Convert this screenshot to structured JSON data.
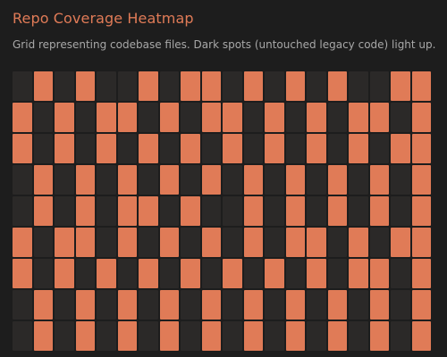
{
  "header": {
    "title": "Repo Coverage Heatmap",
    "subtitle": "Grid representing codebase files. Dark spots (untouched legacy code) light up."
  },
  "colors": {
    "background": "#1d1d1d",
    "dark_cell": "#2b2928",
    "lit_cell": "#e07b57",
    "title": "#e07b57",
    "subtitle": "#a8a8a8"
  },
  "grid": {
    "columns": 20,
    "rows": [
      [
        0,
        1,
        0,
        1,
        0,
        0,
        1,
        0,
        1,
        1,
        0,
        1,
        0,
        1,
        0,
        1,
        0,
        0,
        1,
        1
      ],
      [
        1,
        0,
        1,
        0,
        1,
        1,
        0,
        1,
        0,
        1,
        1,
        0,
        1,
        0,
        1,
        0,
        1,
        1,
        0,
        1
      ],
      [
        1,
        0,
        1,
        0,
        1,
        0,
        1,
        0,
        1,
        0,
        1,
        0,
        1,
        0,
        1,
        0,
        1,
        0,
        1,
        1
      ],
      [
        0,
        1,
        0,
        1,
        0,
        1,
        0,
        1,
        0,
        1,
        0,
        1,
        0,
        1,
        0,
        1,
        0,
        1,
        0,
        1
      ],
      [
        0,
        1,
        0,
        1,
        0,
        1,
        1,
        0,
        1,
        0,
        0,
        1,
        0,
        1,
        0,
        1,
        0,
        1,
        0,
        1
      ],
      [
        1,
        0,
        1,
        1,
        0,
        1,
        0,
        1,
        0,
        1,
        0,
        1,
        0,
        1,
        1,
        0,
        1,
        0,
        1,
        1
      ],
      [
        1,
        0,
        1,
        0,
        1,
        0,
        1,
        0,
        1,
        0,
        1,
        0,
        1,
        0,
        1,
        0,
        1,
        1,
        0,
        1
      ],
      [
        0,
        1,
        0,
        1,
        0,
        1,
        0,
        1,
        0,
        1,
        0,
        1,
        0,
        1,
        0,
        1,
        0,
        1,
        0,
        1
      ],
      [
        0,
        1,
        0,
        1,
        0,
        1,
        0,
        1,
        0,
        1,
        0,
        1,
        0,
        1,
        0,
        1,
        0,
        1,
        0,
        1
      ]
    ]
  }
}
